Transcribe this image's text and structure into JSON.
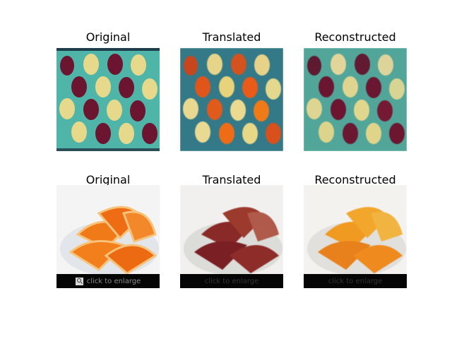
{
  "rows": [
    {
      "titles": [
        "Original",
        "Translated",
        "Reconstructed"
      ]
    },
    {
      "titles": [
        "Original",
        "Translated",
        "Reconstructed"
      ],
      "overlay_text": "click to enlarge"
    }
  ],
  "colors": {
    "teal_background": "#4fb5a8",
    "dark_teal_background": "#2f6f86",
    "apple_red": "#6b1530",
    "pear_yellow": "#e7d98c",
    "orange": "#f07a18"
  },
  "icons": [
    "magnifier-icon"
  ]
}
